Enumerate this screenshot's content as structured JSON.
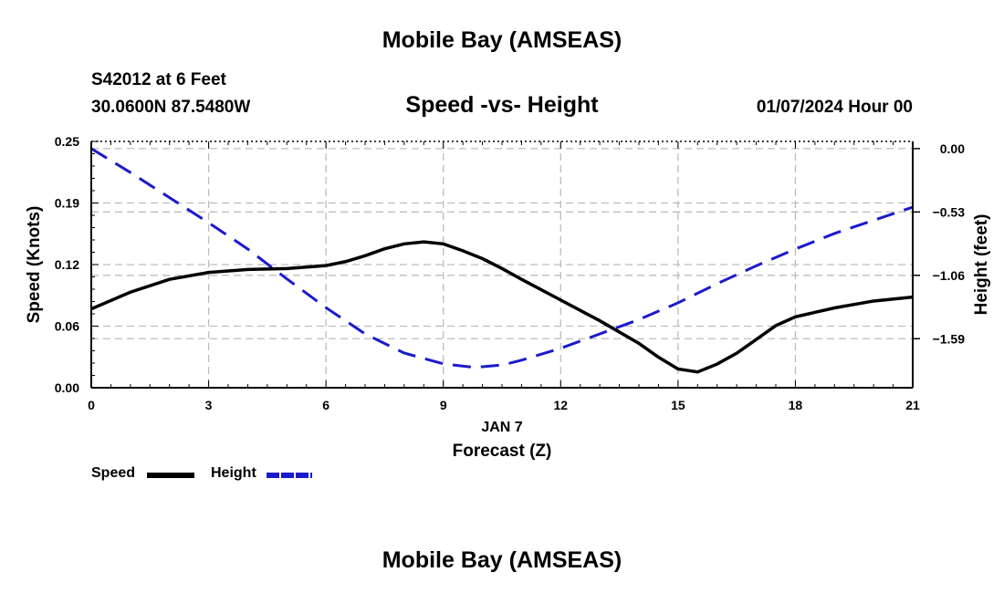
{
  "header": {
    "title": "Mobile Bay (AMSEAS)",
    "station": "S42012 at 6 Feet",
    "coords": "30.0600N  87.5480W",
    "subtitle": "Speed -vs- Height",
    "datehour": "01/07/2024 Hour 00"
  },
  "footer": {
    "title": "Mobile Bay (AMSEAS)"
  },
  "legend": {
    "speed_label": "Speed",
    "height_label": "Height"
  },
  "colors": {
    "speed": "#000000",
    "height": "#1a1acc",
    "grid": "#bdbdbd"
  },
  "chart_data": {
    "type": "line",
    "title": "Speed -vs- Height",
    "xlabel": "Forecast (Z)",
    "xlabel_date": "JAN 7",
    "ylabel_left": "Speed (Knots)",
    "ylabel_right": "Height (feet)",
    "xlim": [
      0,
      21
    ],
    "ylim_left": [
      0,
      0.25
    ],
    "ylim_right": [
      -2.0,
      0.06
    ],
    "x_ticks": [
      0,
      3,
      6,
      9,
      12,
      15,
      18,
      21
    ],
    "x_tick_labels": [
      "0",
      "3",
      "6",
      "9",
      "12",
      "15",
      "18",
      "21"
    ],
    "y_left_ticks": [
      0,
      0.0625,
      0.125,
      0.1875,
      0.25
    ],
    "y_left_tick_labels": [
      "0.00",
      "0.06",
      "0.12",
      "0.19",
      "0.25"
    ],
    "y_right_ticks": [
      0.0,
      -0.53,
      -1.06,
      -1.59
    ],
    "y_right_tick_labels": [
      "0.00",
      "−0.53",
      "−1.06",
      "−1.59"
    ],
    "series": [
      {
        "name": "Speed",
        "axis": "left",
        "x": [
          0,
          1,
          2,
          3,
          4,
          5,
          6,
          6.5,
          7,
          7.5,
          8,
          8.5,
          9,
          9.5,
          10,
          10.5,
          11,
          12,
          13,
          14,
          14.5,
          15,
          15.5,
          16,
          16.5,
          17,
          17.5,
          18,
          19,
          20,
          21
        ],
        "values": [
          0.08,
          0.097,
          0.11,
          0.117,
          0.12,
          0.121,
          0.124,
          0.128,
          0.134,
          0.141,
          0.146,
          0.148,
          0.146,
          0.139,
          0.131,
          0.121,
          0.11,
          0.089,
          0.068,
          0.045,
          0.031,
          0.019,
          0.016,
          0.024,
          0.035,
          0.049,
          0.063,
          0.072,
          0.081,
          0.088,
          0.092
        ]
      },
      {
        "name": "Height",
        "axis": "right",
        "x": [
          0,
          1,
          2,
          3,
          4,
          5,
          6,
          7,
          8,
          9,
          9.8,
          10.5,
          11,
          12,
          13,
          14,
          15,
          16,
          17,
          18,
          19,
          20,
          21
        ],
        "values": [
          0.0,
          -0.2,
          -0.41,
          -0.62,
          -0.84,
          -1.09,
          -1.33,
          -1.55,
          -1.71,
          -1.8,
          -1.83,
          -1.81,
          -1.77,
          -1.67,
          -1.55,
          -1.43,
          -1.29,
          -1.13,
          -0.98,
          -0.84,
          -0.71,
          -0.6,
          -0.49
        ]
      }
    ],
    "legend_position": "bottom-left"
  }
}
